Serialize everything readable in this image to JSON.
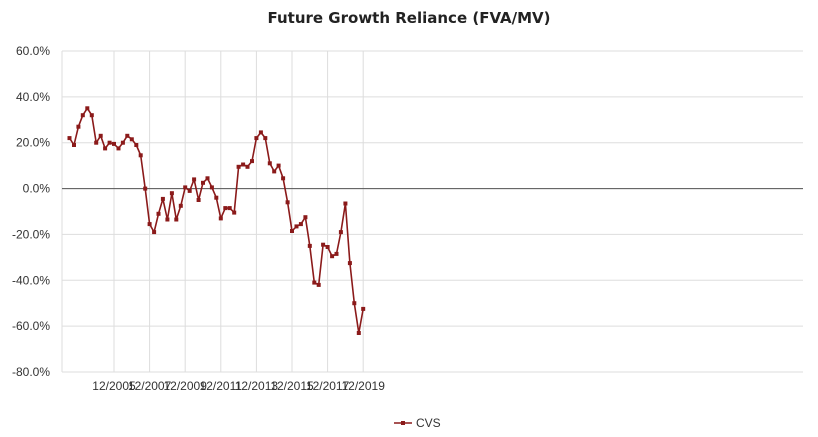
{
  "chart_data": {
    "type": "line",
    "title": "Future Growth Reliance (FVA/MV)",
    "xlabel": "",
    "ylabel": "",
    "ylim": [
      -80,
      60
    ],
    "y_ticks": [
      "60.0%",
      "40.0%",
      "20.0%",
      "0.0%",
      "-20.0%",
      "-40.0%",
      "-60.0%",
      "-80.0%"
    ],
    "x_ticks": [
      "12/2005",
      "12/2007",
      "12/2009",
      "12/2011",
      "12/2013",
      "12/2015",
      "12/2017",
      "12/2019"
    ],
    "grid": true,
    "legend_position": "bottom-center",
    "colors": {
      "series": "#8b1a1a",
      "zero_line": "#555555",
      "grid": "#dddddd"
    },
    "series": [
      {
        "name": "CVS",
        "values": [
          22,
          19,
          27,
          32,
          35,
          32,
          20,
          23,
          17.5,
          20,
          19.5,
          17.5,
          20,
          23,
          21.5,
          19,
          14.5,
          0,
          -15.5,
          -19,
          -11,
          -4.5,
          -13.5,
          -2,
          -13.5,
          -7.5,
          0.5,
          -1,
          4,
          -5,
          2.5,
          4.5,
          0.5,
          -4,
          -13,
          -8.5,
          -8.5,
          -10.5,
          9.5,
          10.5,
          9.5,
          12,
          22,
          24.5,
          22,
          11,
          7.5,
          10,
          4.5,
          -6,
          -18.5,
          -16.5,
          -15.5,
          -12.5,
          -25,
          -41,
          -42,
          -24.5,
          -25.5,
          -29.5,
          -28.5,
          -19,
          -6.5,
          -32.5,
          -50,
          -63,
          -52.5
        ]
      }
    ]
  }
}
